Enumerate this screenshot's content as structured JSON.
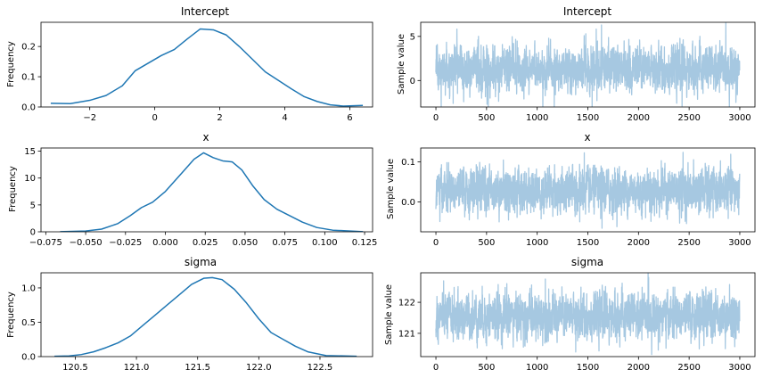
{
  "colors": {
    "density": "#1f77b4",
    "trace": "#a6c8e1"
  },
  "chart_data": [
    {
      "type": "line",
      "title": "Intercept",
      "ylabel": "Frequency",
      "xlim": [
        -3.5,
        6.7
      ],
      "ylim": [
        0,
        0.28
      ],
      "xticks": [
        -2,
        0,
        2,
        4,
        6
      ],
      "xtick_labels": [
        "−2",
        "0",
        "2",
        "4",
        "6"
      ],
      "yticks": [
        0,
        0.1,
        0.2
      ],
      "ytick_labels": [
        "0.0",
        "0.1",
        "0.2"
      ],
      "x": [
        -3.2,
        -2.6,
        -2.0,
        -1.5,
        -1.0,
        -0.6,
        -0.2,
        0.2,
        0.6,
        1.0,
        1.4,
        1.8,
        2.2,
        2.6,
        3.0,
        3.4,
        3.8,
        4.2,
        4.6,
        5.0,
        5.4,
        5.8,
        6.4
      ],
      "y": [
        0.012,
        0.011,
        0.022,
        0.038,
        0.07,
        0.12,
        0.145,
        0.17,
        0.19,
        0.225,
        0.258,
        0.255,
        0.238,
        0.2,
        0.158,
        0.116,
        0.088,
        0.06,
        0.034,
        0.018,
        0.007,
        0.003,
        0.005
      ]
    },
    {
      "type": "line",
      "title": "Intercept",
      "ylabel": "Sample value",
      "xlim": [
        -150,
        3150
      ],
      "ylim": [
        -3.0,
        6.6
      ],
      "xticks": [
        0,
        500,
        1000,
        1500,
        2000,
        2500,
        3000
      ],
      "xtick_labels": [
        "0",
        "500",
        "1000",
        "1500",
        "2000",
        "2500",
        "3000"
      ],
      "yticks": [
        0,
        5
      ],
      "ytick_labels": [
        "0",
        "5"
      ],
      "n": 3000,
      "center": 1.3,
      "spread": 1.25,
      "spikes": [
        [
          1635,
          6.3
        ],
        [
          1542,
          -3.0
        ],
        [
          2430,
          -2.9
        ],
        [
          505,
          -2.7
        ],
        [
          170,
          -2.6
        ],
        [
          1480,
          5.3
        ],
        [
          420,
          5.0
        ]
      ]
    },
    {
      "type": "line",
      "title": "x",
      "ylabel": "Frequency",
      "xlim": [
        -0.078,
        0.13
      ],
      "ylim": [
        0,
        15.6
      ],
      "xticks": [
        -0.075,
        -0.05,
        -0.025,
        0.0,
        0.025,
        0.05,
        0.075,
        0.1,
        0.125
      ],
      "xtick_labels": [
        "−0.075",
        "−0.050",
        "−0.025",
        "0.000",
        "0.025",
        "0.050",
        "0.075",
        "0.100",
        "0.125"
      ],
      "yticks": [
        0,
        5,
        10,
        15
      ],
      "ytick_labels": [
        "0",
        "5",
        "10",
        "15"
      ],
      "x": [
        -0.066,
        -0.05,
        -0.04,
        -0.03,
        -0.022,
        -0.015,
        -0.008,
        0.0,
        0.006,
        0.012,
        0.018,
        0.024,
        0.03,
        0.036,
        0.042,
        0.048,
        0.055,
        0.062,
        0.07,
        0.078,
        0.086,
        0.095,
        0.105,
        0.124
      ],
      "y": [
        0.03,
        0.15,
        0.5,
        1.5,
        3.0,
        4.5,
        5.5,
        7.5,
        9.5,
        11.5,
        13.5,
        14.7,
        13.8,
        13.2,
        13.0,
        11.5,
        8.5,
        6.0,
        4.2,
        3.0,
        1.8,
        0.8,
        0.3,
        0.03
      ]
    },
    {
      "type": "line",
      "title": "x",
      "ylabel": "Sample value",
      "xlim": [
        -150,
        3150
      ],
      "ylim": [
        -0.075,
        0.135
      ],
      "xticks": [
        0,
        500,
        1000,
        1500,
        2000,
        2500,
        3000
      ],
      "xtick_labels": [
        "0",
        "500",
        "1000",
        "1500",
        "2000",
        "2500",
        "3000"
      ],
      "yticks": [
        0.0,
        0.1
      ],
      "ytick_labels": [
        "0.0",
        "0.1"
      ],
      "n": 3000,
      "center": 0.028,
      "spread": 0.027,
      "spikes": [
        [
          1640,
          -0.066
        ],
        [
          1465,
          0.123
        ],
        [
          2440,
          0.124
        ],
        [
          1420,
          -0.05
        ],
        [
          330,
          -0.045
        ],
        [
          2700,
          -0.04
        ]
      ]
    },
    {
      "type": "line",
      "title": "sigma",
      "ylabel": "Frequency",
      "xlim": [
        120.22,
        122.93
      ],
      "ylim": [
        0,
        1.22
      ],
      "xticks": [
        120.5,
        121.0,
        121.5,
        122.0,
        122.5
      ],
      "xtick_labels": [
        "120.5",
        "121.0",
        "121.5",
        "122.0",
        "122.5"
      ],
      "yticks": [
        0,
        0.5,
        1.0
      ],
      "ytick_labels": [
        "0.0",
        "0.5",
        "1.0"
      ],
      "x": [
        120.33,
        120.45,
        120.55,
        120.65,
        120.75,
        120.85,
        120.95,
        121.05,
        121.15,
        121.25,
        121.35,
        121.45,
        121.55,
        121.62,
        121.7,
        121.8,
        121.9,
        122.0,
        122.1,
        122.2,
        122.3,
        122.4,
        122.55,
        122.8
      ],
      "y": [
        0.005,
        0.01,
        0.03,
        0.07,
        0.13,
        0.2,
        0.3,
        0.45,
        0.6,
        0.75,
        0.9,
        1.05,
        1.14,
        1.15,
        1.12,
        0.98,
        0.78,
        0.55,
        0.35,
        0.25,
        0.15,
        0.07,
        0.015,
        0.005
      ]
    },
    {
      "type": "line",
      "title": "sigma",
      "ylabel": "Sample value",
      "xlim": [
        -150,
        3150
      ],
      "ylim": [
        120.25,
        122.95
      ],
      "xticks": [
        0,
        500,
        1000,
        1500,
        2000,
        2500,
        3000
      ],
      "xtick_labels": [
        "0",
        "500",
        "1000",
        "1500",
        "2000",
        "2500",
        "3000"
      ],
      "yticks": [
        121,
        122
      ],
      "ytick_labels": [
        "121",
        "122"
      ],
      "n": 3000,
      "center": 121.55,
      "spread": 0.36,
      "spikes": [
        [
          2100,
          122.8
        ],
        [
          1080,
          122.75
        ],
        [
          1380,
          120.4
        ],
        [
          2600,
          120.5
        ],
        [
          700,
          122.6
        ],
        [
          500,
          120.6
        ]
      ]
    }
  ]
}
